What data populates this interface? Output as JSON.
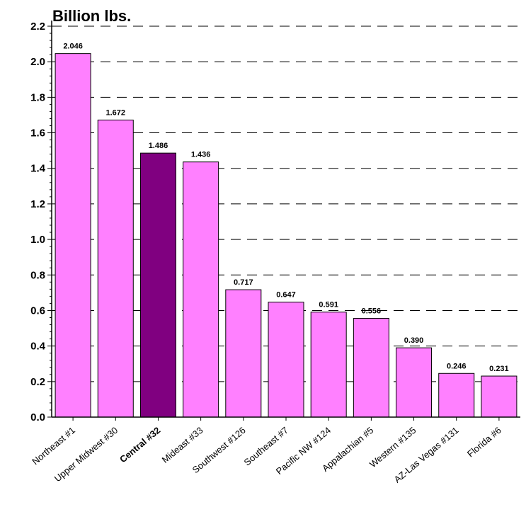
{
  "chart_data": {
    "type": "bar",
    "ylabel": "Billion lbs.",
    "xlabel": "",
    "ylim": [
      0,
      2.2
    ],
    "y_tick_step": 0.2,
    "grid": "horizontal-dashed",
    "categories": [
      "Northeast  #1",
      "Upper Midwest  #30",
      "Central  #32",
      "Mideast  #33",
      "Southwest  #126",
      "Southeast  #7",
      "Pacific NW  #124",
      "Appalachian  #5",
      "Western  #135",
      "AZ-Las Vegas  #131",
      "Florida  #6"
    ],
    "values": [
      2.046,
      1.672,
      1.486,
      1.436,
      0.717,
      0.647,
      0.591,
      0.556,
      0.39,
      0.246,
      0.231
    ],
    "value_labels": [
      "2.046",
      "1.672",
      "1.486",
      "1.436",
      "0.717",
      "0.647",
      "0.591",
      "0.556",
      "0.390",
      "0.246",
      "0.231"
    ],
    "highlight_category": "Central  #32",
    "colors": {
      "bar": "#ff80ff",
      "highlight": "#800080",
      "outline": "#000000",
      "grid": "#000000"
    }
  }
}
